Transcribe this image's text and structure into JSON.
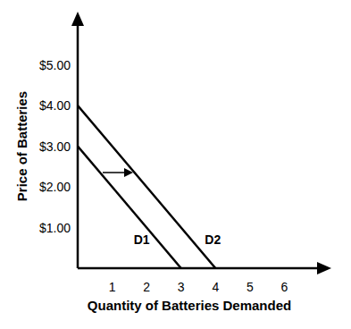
{
  "chart_data": {
    "type": "line",
    "x_label": "Quantity of Batteries Demanded",
    "y_label": "Price of Batteries",
    "x": [
      0,
      1,
      2,
      3,
      4
    ],
    "series": [
      {
        "name": "D1",
        "color": "#000000",
        "values": [
          3,
          2,
          1,
          0,
          null
        ]
      },
      {
        "name": "D2",
        "color": "#000000",
        "values": [
          4,
          3,
          2,
          1,
          0
        ]
      }
    ],
    "xlim": [
      0,
      7
    ],
    "ylim": [
      0,
      6
    ],
    "xticks": [
      1,
      2,
      3,
      4,
      5,
      6
    ],
    "yticks": [
      {
        "value": 1,
        "label": "$1.00"
      },
      {
        "value": 2,
        "label": "$2.00"
      },
      {
        "value": 3,
        "label": "$3.00"
      },
      {
        "value": 4,
        "label": "$4.00"
      },
      {
        "value": 5,
        "label": "$5.00"
      }
    ],
    "grid": false
  }
}
